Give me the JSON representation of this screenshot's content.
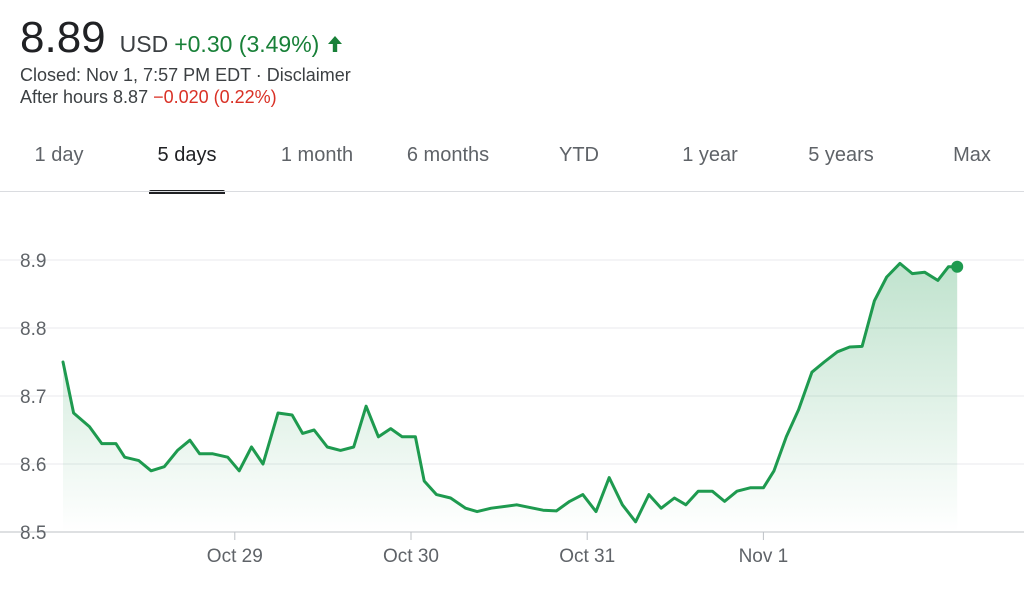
{
  "quote": {
    "price": "8.89",
    "currency": "USD",
    "change": "+0.30 (3.49%)",
    "change_direction": "up",
    "status": "Closed: Nov 1, 7:57 PM EDT · Disclaimer",
    "after_hours_label": "After hours 8.87",
    "after_hours_change": "−0.020 (0.22%)"
  },
  "tabs": [
    {
      "label": "1 day"
    },
    {
      "label": "5 days",
      "active": true
    },
    {
      "label": "1 month"
    },
    {
      "label": "6 months"
    },
    {
      "label": "YTD"
    },
    {
      "label": "1 year"
    },
    {
      "label": "5 years"
    },
    {
      "label": "Max"
    }
  ],
  "colors": {
    "up": "#188038",
    "down": "#d93025",
    "line": "#1e9a4f",
    "grid": "#e8eaed"
  },
  "chart_data": {
    "type": "area",
    "title": "",
    "xlabel": "",
    "ylabel": "",
    "ylim": [
      8.5,
      8.9
    ],
    "yticks": [
      8.5,
      8.6,
      8.7,
      8.8,
      8.9
    ],
    "ytick_labels": [
      "8.5",
      "8.6",
      "8.7",
      "8.8",
      "8.9"
    ],
    "xlim": [
      0,
      100
    ],
    "xticks": [
      {
        "x": 19.5,
        "label": "Oct 29"
      },
      {
        "x": 39.5,
        "label": "Oct 30"
      },
      {
        "x": 59.5,
        "label": "Oct 31"
      },
      {
        "x": 79.5,
        "label": "Nov 1"
      }
    ],
    "grid": true,
    "series": [
      {
        "values": [
          [
            0,
            8.75
          ],
          [
            1.2,
            8.675
          ],
          [
            3.0,
            8.655
          ],
          [
            4.4,
            8.63
          ],
          [
            6.0,
            8.63
          ],
          [
            7.0,
            8.61
          ],
          [
            8.6,
            8.605
          ],
          [
            10.0,
            8.59
          ],
          [
            11.5,
            8.596
          ],
          [
            13.0,
            8.62
          ],
          [
            14.4,
            8.635
          ],
          [
            15.5,
            8.615
          ],
          [
            17.0,
            8.615
          ],
          [
            18.7,
            8.61
          ],
          [
            20.0,
            8.59
          ],
          [
            21.4,
            8.625
          ],
          [
            22.7,
            8.6
          ],
          [
            24.4,
            8.675
          ],
          [
            26.0,
            8.672
          ],
          [
            27.2,
            8.645
          ],
          [
            28.5,
            8.65
          ],
          [
            30.0,
            8.625
          ],
          [
            31.5,
            8.62
          ],
          [
            33.0,
            8.625
          ],
          [
            34.4,
            8.685
          ],
          [
            35.8,
            8.64
          ],
          [
            37.2,
            8.652
          ],
          [
            38.5,
            8.64
          ],
          [
            40.0,
            8.64
          ],
          [
            41.0,
            8.575
          ],
          [
            42.4,
            8.555
          ],
          [
            44.0,
            8.55
          ],
          [
            45.7,
            8.535
          ],
          [
            47.0,
            8.53
          ],
          [
            48.6,
            8.535
          ],
          [
            51.5,
            8.54
          ],
          [
            54.5,
            8.532
          ],
          [
            56.0,
            8.531
          ],
          [
            57.5,
            8.545
          ],
          [
            59.0,
            8.555
          ],
          [
            60.5,
            8.53
          ],
          [
            62.0,
            8.58
          ],
          [
            63.5,
            8.54
          ],
          [
            65.0,
            8.515
          ],
          [
            66.5,
            8.555
          ],
          [
            67.9,
            8.535
          ],
          [
            69.4,
            8.55
          ],
          [
            70.7,
            8.54
          ],
          [
            72.1,
            8.56
          ],
          [
            73.7,
            8.56
          ],
          [
            75.1,
            8.545
          ],
          [
            76.5,
            8.56
          ],
          [
            78.0,
            8.565
          ],
          [
            79.5,
            8.565
          ],
          [
            80.7,
            8.59
          ],
          [
            82.1,
            8.64
          ],
          [
            83.5,
            8.68
          ],
          [
            85.0,
            8.735
          ],
          [
            86.4,
            8.75
          ],
          [
            87.9,
            8.765
          ],
          [
            89.3,
            8.772
          ],
          [
            90.7,
            8.773
          ],
          [
            92.1,
            8.84
          ],
          [
            93.5,
            8.875
          ],
          [
            95.0,
            8.895
          ],
          [
            96.4,
            8.88
          ],
          [
            97.8,
            8.882
          ],
          [
            99.3,
            8.87
          ],
          [
            100.5,
            8.89
          ],
          [
            101.5,
            8.89
          ]
        ]
      }
    ]
  }
}
